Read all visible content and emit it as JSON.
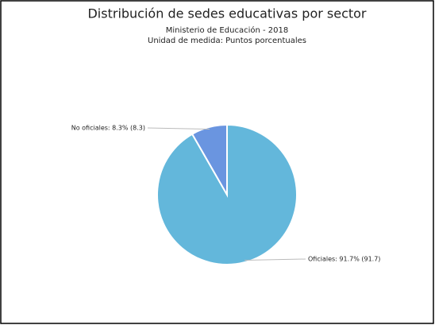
{
  "chart_data": {
    "type": "pie",
    "title": "Distribución de sedes educativas por sector",
    "subtitle": [
      "Ministerio de Educación - 2018",
      "Unidad de medida: Puntos porcentuales"
    ],
    "values": [
      91.7,
      8.3
    ],
    "value_labels": [
      "Oficiales: 91.7% (91.7)",
      "No oficiales: 8.3% (8.3)"
    ],
    "colors": [
      "#63b7db",
      "#6a95e0"
    ]
  }
}
